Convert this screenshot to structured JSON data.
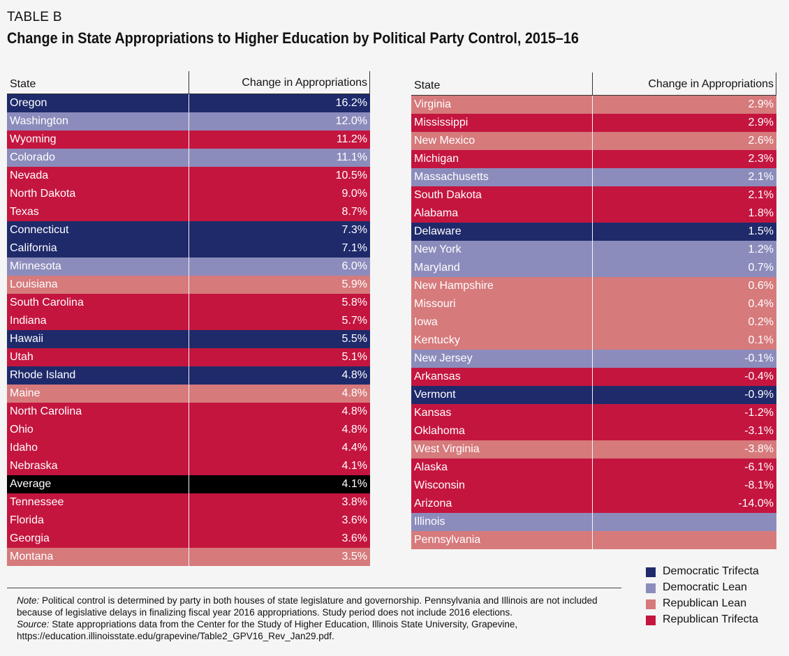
{
  "header": {
    "tag": "TABLE B",
    "title": "Change in State Appropriations to Higher Education by Political Party Control, 2015–16"
  },
  "columns": {
    "state": "State",
    "change": "Change in Appropriations"
  },
  "colors": {
    "Democratic Trifecta": "#1f2a6b",
    "Democratic Lean": "#8c8cbc",
    "Republican Lean": "#d67a7c",
    "Republican Trifecta": "#c4153f",
    "Average": "#000000"
  },
  "chart_data": {
    "type": "table",
    "title": "Change in State Appropriations to Higher Education by Political Party Control, 2015–16",
    "columns": [
      "State",
      "Change in Appropriations"
    ],
    "left_table": [
      {
        "state": "Oregon",
        "change": "16.2%",
        "party": "Democratic Trifecta"
      },
      {
        "state": "Washington",
        "change": "12.0%",
        "party": "Democratic Lean"
      },
      {
        "state": "Wyoming",
        "change": "11.2%",
        "party": "Republican Trifecta"
      },
      {
        "state": "Colorado",
        "change": "11.1%",
        "party": "Democratic Lean"
      },
      {
        "state": "Nevada",
        "change": "10.5%",
        "party": "Republican Trifecta"
      },
      {
        "state": "North Dakota",
        "change": "9.0%",
        "party": "Republican Trifecta"
      },
      {
        "state": "Texas",
        "change": "8.7%",
        "party": "Republican Trifecta"
      },
      {
        "state": "Connecticut",
        "change": "7.3%",
        "party": "Democratic Trifecta"
      },
      {
        "state": "California",
        "change": "7.1%",
        "party": "Democratic Trifecta"
      },
      {
        "state": "Minnesota",
        "change": "6.0%",
        "party": "Democratic Lean"
      },
      {
        "state": "Louisiana",
        "change": "5.9%",
        "party": "Republican Lean"
      },
      {
        "state": "South Carolina",
        "change": "5.8%",
        "party": "Republican Trifecta"
      },
      {
        "state": "Indiana",
        "change": "5.7%",
        "party": "Republican Trifecta"
      },
      {
        "state": "Hawaii",
        "change": "5.5%",
        "party": "Democratic Trifecta"
      },
      {
        "state": "Utah",
        "change": "5.1%",
        "party": "Republican Trifecta"
      },
      {
        "state": "Rhode Island",
        "change": "4.8%",
        "party": "Democratic Trifecta"
      },
      {
        "state": "Maine",
        "change": "4.8%",
        "party": "Republican Lean"
      },
      {
        "state": "North Carolina",
        "change": "4.8%",
        "party": "Republican Trifecta"
      },
      {
        "state": "Ohio",
        "change": "4.8%",
        "party": "Republican Trifecta"
      },
      {
        "state": "Idaho",
        "change": "4.4%",
        "party": "Republican Trifecta"
      },
      {
        "state": "Nebraska",
        "change": "4.1%",
        "party": "Republican Trifecta"
      },
      {
        "state": "Average",
        "change": "4.1%",
        "party": "Average"
      },
      {
        "state": "Tennessee",
        "change": "3.8%",
        "party": "Republican Trifecta"
      },
      {
        "state": "Florida",
        "change": "3.6%",
        "party": "Republican Trifecta"
      },
      {
        "state": "Georgia",
        "change": "3.6%",
        "party": "Republican Trifecta"
      },
      {
        "state": "Montana",
        "change": "3.5%",
        "party": "Republican Lean"
      }
    ],
    "right_table": [
      {
        "state": "Virginia",
        "change": "2.9%",
        "party": "Republican Lean"
      },
      {
        "state": "Mississippi",
        "change": "2.9%",
        "party": "Republican Trifecta"
      },
      {
        "state": "New Mexico",
        "change": "2.6%",
        "party": "Republican Lean"
      },
      {
        "state": "Michigan",
        "change": "2.3%",
        "party": "Republican Trifecta"
      },
      {
        "state": "Massachusetts",
        "change": "2.1%",
        "party": "Democratic Lean"
      },
      {
        "state": "South Dakota",
        "change": "2.1%",
        "party": "Republican Trifecta"
      },
      {
        "state": "Alabama",
        "change": "1.8%",
        "party": "Republican Trifecta"
      },
      {
        "state": "Delaware",
        "change": "1.5%",
        "party": "Democratic Trifecta"
      },
      {
        "state": "New York",
        "change": "1.2%",
        "party": "Democratic Lean"
      },
      {
        "state": "Maryland",
        "change": "0.7%",
        "party": "Democratic Lean"
      },
      {
        "state": "New Hampshire",
        "change": "0.6%",
        "party": "Republican Lean"
      },
      {
        "state": "Missouri",
        "change": "0.4%",
        "party": "Republican Lean"
      },
      {
        "state": "Iowa",
        "change": "0.2%",
        "party": "Republican Lean"
      },
      {
        "state": "Kentucky",
        "change": "0.1%",
        "party": "Republican Lean"
      },
      {
        "state": "New Jersey",
        "change": "-0.1%",
        "party": "Democratic Lean"
      },
      {
        "state": "Arkansas",
        "change": "-0.4%",
        "party": "Republican Trifecta"
      },
      {
        "state": "Vermont",
        "change": "-0.9%",
        "party": "Democratic Trifecta"
      },
      {
        "state": "Kansas",
        "change": "-1.2%",
        "party": "Republican Trifecta"
      },
      {
        "state": "Oklahoma",
        "change": "-3.1%",
        "party": "Republican Trifecta"
      },
      {
        "state": "West Virginia",
        "change": "-3.8%",
        "party": "Republican Lean"
      },
      {
        "state": "Alaska",
        "change": "-6.1%",
        "party": "Republican Trifecta"
      },
      {
        "state": "Wisconsin",
        "change": "-8.1%",
        "party": "Republican Trifecta"
      },
      {
        "state": "Arizona",
        "change": "-14.0%",
        "party": "Republican Trifecta"
      },
      {
        "state": "Illinois",
        "change": "",
        "party": "Democratic Lean"
      },
      {
        "state": "Pennsylvania",
        "change": "",
        "party": "Republican Lean"
      }
    ]
  },
  "legend": [
    {
      "label": "Democratic Trifecta",
      "color": "#1f2a6b"
    },
    {
      "label": "Democratic Lean",
      "color": "#8c8cbc"
    },
    {
      "label": "Republican Lean",
      "color": "#d67a7c"
    },
    {
      "label": "Republican Trifecta",
      "color": "#c4153f"
    }
  ],
  "notes": {
    "note_label": "Note:",
    "note_text": " Political control is determined by party in both houses of state legislature and governorship. Pennsylvania and Illinois are not included because of legislative delays in finalizing fiscal year 2016 appropriations. Study period does not include 2016 elections.",
    "source_label": "Source:",
    "source_text": " State appropriations data from the Center for the Study of Higher Education, Illinois State University, Grapevine, https://education.illinoisstate.edu/grapevine/Table2_GPV16_Rev_Jan29.pdf."
  }
}
